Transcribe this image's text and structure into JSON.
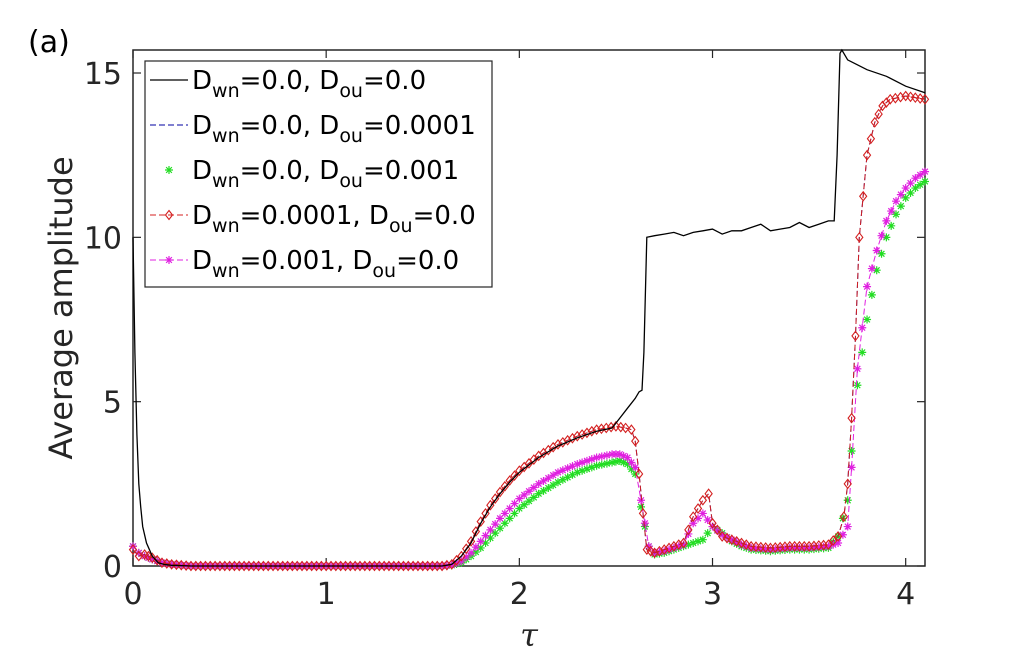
{
  "panel_label": "(a)",
  "chart_data": {
    "type": "line",
    "title": "",
    "xlabel": "τ",
    "ylabel": "Average amplitude",
    "xlim": [
      0,
      4.1
    ],
    "ylim": [
      0,
      15.7
    ],
    "xticks": [
      0,
      1,
      2,
      3,
      4
    ],
    "yticks": [
      0,
      5,
      10,
      15
    ],
    "legend_position": "top-left",
    "series": [
      {
        "name": "D_wn=0.0, D_ou=0.0",
        "legend": {
          "p1": "D",
          "s1": "wn",
          "p2": "=0.0, D",
          "s2": "ou",
          "p3": "=0.0"
        },
        "color": "#000000",
        "style": "solid",
        "marker": "none",
        "x": [
          0,
          0.01,
          0.02,
          0.03,
          0.04,
          0.05,
          0.07,
          0.1,
          0.13,
          0.16,
          0.2,
          0.3,
          0.5,
          1.0,
          1.5,
          1.6,
          1.65,
          1.7,
          1.75,
          1.8,
          1.85,
          1.9,
          1.95,
          2.0,
          2.1,
          2.2,
          2.3,
          2.4,
          2.48,
          2.52,
          2.56,
          2.6,
          2.62,
          2.635,
          2.645,
          2.66,
          2.7,
          2.75,
          2.8,
          2.85,
          2.9,
          2.95,
          3.0,
          3.05,
          3.1,
          3.15,
          3.2,
          3.25,
          3.3,
          3.35,
          3.4,
          3.45,
          3.5,
          3.55,
          3.6,
          3.63,
          3.645,
          3.66,
          3.67,
          3.7,
          3.75,
          3.8,
          3.9,
          4.0,
          4.1
        ],
        "y": [
          10.0,
          6.5,
          4.0,
          2.5,
          1.8,
          1.2,
          0.7,
          0.3,
          0.1,
          0.05,
          0.02,
          0.0,
          0.0,
          0.0,
          0.0,
          0.0,
          0.05,
          0.3,
          0.7,
          1.3,
          1.8,
          2.2,
          2.55,
          2.85,
          3.3,
          3.65,
          3.9,
          4.1,
          4.2,
          4.5,
          4.8,
          5.1,
          5.3,
          5.35,
          6.5,
          10.0,
          10.05,
          10.1,
          10.15,
          10.05,
          10.15,
          10.2,
          10.25,
          10.1,
          10.2,
          10.2,
          10.3,
          10.4,
          10.2,
          10.25,
          10.3,
          10.45,
          10.3,
          10.4,
          10.5,
          10.5,
          12.5,
          15.6,
          15.7,
          15.4,
          15.25,
          15.1,
          14.9,
          14.6,
          14.4
        ]
      },
      {
        "name": "D_wn=0.0, D_ou=0.0001",
        "legend": {
          "p1": "D",
          "s1": "wn",
          "p2": "=0.0, D",
          "s2": "ou",
          "p3": "=0.0001"
        },
        "color": "#0000a0",
        "style": "dashed",
        "marker": "none",
        "x": [
          0,
          0.03,
          0.06,
          0.1,
          0.15,
          0.2,
          0.3,
          0.5,
          1.0,
          1.5,
          1.6,
          1.65,
          1.7,
          1.75,
          1.8,
          1.85,
          1.9,
          1.95,
          2.0,
          2.1,
          2.2,
          2.3,
          2.4,
          2.5,
          2.55,
          2.58,
          2.6,
          2.62,
          2.64,
          2.66,
          2.7,
          2.75,
          2.8,
          2.85,
          2.9,
          2.95,
          2.98,
          3.0,
          3.05,
          3.1,
          3.15,
          3.2,
          3.3,
          3.4,
          3.5,
          3.6,
          3.65,
          3.68,
          3.7,
          3.72,
          3.74,
          3.76,
          3.8,
          3.84,
          3.88,
          3.92,
          4.0,
          4.1
        ],
        "y": [
          0.5,
          0.3,
          0.35,
          0.25,
          0.1,
          0.05,
          0.0,
          0.0,
          0.0,
          0.0,
          0.0,
          0.05,
          0.3,
          0.75,
          1.35,
          1.85,
          2.25,
          2.6,
          2.9,
          3.35,
          3.7,
          3.95,
          4.15,
          4.25,
          4.2,
          4.15,
          3.8,
          2.8,
          1.6,
          0.5,
          0.4,
          0.5,
          0.6,
          0.7,
          1.5,
          2.0,
          2.2,
          1.3,
          0.9,
          0.8,
          0.7,
          0.6,
          0.55,
          0.6,
          0.6,
          0.65,
          0.9,
          1.5,
          2.5,
          4.5,
          7.0,
          10.0,
          12.5,
          13.5,
          14.0,
          14.2,
          14.3,
          14.2
        ]
      },
      {
        "name": "D_wn=0.0, D_ou=0.001",
        "legend": {
          "p1": "D",
          "s1": "wn",
          "p2": "=0.0, D",
          "s2": "ou",
          "p3": "=0.001"
        },
        "color": "#22dd22",
        "style": "none",
        "marker": "star",
        "x": [
          0,
          0.03,
          0.06,
          0.1,
          0.15,
          0.2,
          0.3,
          0.5,
          1.0,
          1.5,
          1.6,
          1.65,
          1.7,
          1.75,
          1.8,
          1.85,
          1.9,
          1.95,
          2.0,
          2.1,
          2.2,
          2.3,
          2.4,
          2.48,
          2.52,
          2.56,
          2.6,
          2.63,
          2.67,
          2.7,
          2.75,
          2.8,
          2.85,
          2.9,
          2.95,
          3.0,
          3.05,
          3.1,
          3.15,
          3.2,
          3.3,
          3.4,
          3.5,
          3.6,
          3.65,
          3.7,
          3.72,
          3.75,
          3.8,
          3.85,
          3.9,
          3.95,
          4.0,
          4.05,
          4.1
        ],
        "y": [
          0.6,
          0.4,
          0.3,
          0.2,
          0.1,
          0.05,
          0.0,
          0.0,
          0.0,
          0.0,
          0.0,
          0.02,
          0.1,
          0.3,
          0.55,
          0.85,
          1.15,
          1.45,
          1.75,
          2.2,
          2.55,
          2.85,
          3.05,
          3.15,
          3.2,
          3.1,
          2.8,
          1.8,
          0.6,
          0.35,
          0.4,
          0.5,
          0.6,
          0.7,
          0.8,
          1.2,
          1.0,
          0.75,
          0.6,
          0.5,
          0.45,
          0.5,
          0.5,
          0.55,
          0.9,
          2.0,
          3.5,
          5.5,
          7.5,
          9.0,
          10.0,
          10.7,
          11.2,
          11.5,
          11.7
        ]
      },
      {
        "name": "D_wn=0.0001, D_ou=0.0",
        "legend": {
          "p1": "D",
          "s1": "wn",
          "p2": "=0.0001, D",
          "s2": "ou",
          "p3": "=0.0"
        },
        "color": "#d42020",
        "style": "dashed",
        "marker": "diamond",
        "x": [
          0,
          0.03,
          0.06,
          0.1,
          0.15,
          0.2,
          0.3,
          0.5,
          1.0,
          1.5,
          1.6,
          1.65,
          1.7,
          1.75,
          1.8,
          1.85,
          1.9,
          1.95,
          2.0,
          2.1,
          2.2,
          2.3,
          2.4,
          2.5,
          2.55,
          2.58,
          2.6,
          2.62,
          2.64,
          2.66,
          2.7,
          2.75,
          2.8,
          2.85,
          2.9,
          2.95,
          2.98,
          3.0,
          3.05,
          3.1,
          3.15,
          3.2,
          3.3,
          3.4,
          3.5,
          3.6,
          3.65,
          3.68,
          3.7,
          3.72,
          3.74,
          3.76,
          3.8,
          3.84,
          3.88,
          3.92,
          4.0,
          4.1
        ],
        "y": [
          0.5,
          0.3,
          0.35,
          0.25,
          0.1,
          0.05,
          0.0,
          0.0,
          0.0,
          0.0,
          0.0,
          0.05,
          0.3,
          0.75,
          1.35,
          1.85,
          2.25,
          2.6,
          2.9,
          3.35,
          3.7,
          3.95,
          4.15,
          4.25,
          4.2,
          4.15,
          3.8,
          2.8,
          1.6,
          0.5,
          0.4,
          0.5,
          0.6,
          0.7,
          1.5,
          2.0,
          2.2,
          1.3,
          0.9,
          0.8,
          0.7,
          0.6,
          0.55,
          0.6,
          0.6,
          0.65,
          0.9,
          1.5,
          2.5,
          4.5,
          7.0,
          10.0,
          12.5,
          13.5,
          14.0,
          14.2,
          14.3,
          14.2
        ]
      },
      {
        "name": "D_wn=0.001, D_ou=0.0",
        "legend": {
          "p1": "D",
          "s1": "wn",
          "p2": "=0.001, D",
          "s2": "ou",
          "p3": "=0.0"
        },
        "color": "#e020e0",
        "style": "dashed",
        "marker": "star",
        "x": [
          0,
          0.03,
          0.06,
          0.1,
          0.15,
          0.2,
          0.3,
          0.5,
          1.0,
          1.5,
          1.6,
          1.65,
          1.7,
          1.75,
          1.8,
          1.85,
          1.9,
          1.95,
          2.0,
          2.1,
          2.2,
          2.3,
          2.4,
          2.48,
          2.52,
          2.56,
          2.6,
          2.63,
          2.67,
          2.7,
          2.75,
          2.8,
          2.85,
          2.9,
          2.95,
          3.0,
          3.05,
          3.1,
          3.15,
          3.2,
          3.3,
          3.4,
          3.5,
          3.6,
          3.65,
          3.7,
          3.72,
          3.75,
          3.8,
          3.85,
          3.9,
          3.95,
          4.0,
          4.05,
          4.1
        ],
        "y": [
          0.6,
          0.4,
          0.3,
          0.2,
          0.1,
          0.05,
          0.0,
          0.0,
          0.0,
          0.0,
          0.0,
          0.03,
          0.15,
          0.4,
          0.75,
          1.1,
          1.45,
          1.75,
          2.05,
          2.5,
          2.85,
          3.1,
          3.3,
          3.4,
          3.4,
          3.3,
          3.0,
          2.0,
          0.6,
          0.4,
          0.45,
          0.55,
          0.65,
          1.3,
          1.6,
          1.2,
          0.95,
          0.8,
          0.65,
          0.55,
          0.5,
          0.55,
          0.55,
          0.6,
          0.7,
          1.2,
          3.0,
          6.0,
          8.5,
          9.6,
          10.5,
          11.1,
          11.5,
          11.8,
          12.0
        ]
      }
    ]
  }
}
